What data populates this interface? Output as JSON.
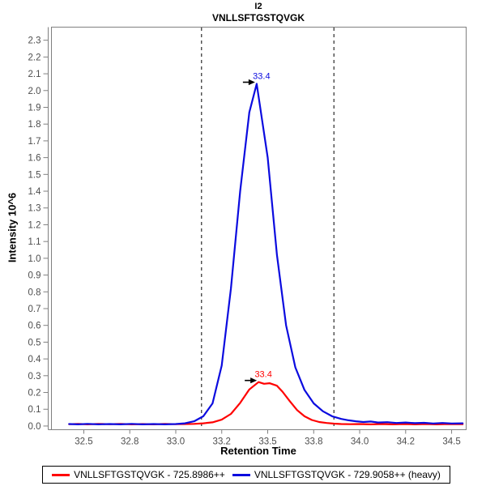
{
  "window": {
    "background": "#ffffff"
  },
  "chart_data": {
    "type": "line",
    "title": "I2",
    "subtitle": "VNLLSFTGSTQVGK",
    "xlabel": "Retention Time",
    "ylabel": "Intensity 10^6",
    "xlim": [
      32.324,
      34.579
    ],
    "ylim": [
      -0.022,
      2.378
    ],
    "grid": false,
    "frame_color": "#808080",
    "tick_label_color": "#4d4d4d",
    "boundary_color": "#2b2b2b",
    "annotation_arrow_color": "#000000",
    "integration_boundaries": [
      33.14,
      33.86
    ],
    "xticks": {
      "values": [
        32.5,
        32.75,
        33.0,
        33.25,
        33.5,
        33.75,
        34.0,
        34.25,
        34.5
      ],
      "labels": [
        "32.5",
        "32.8",
        "33.0",
        "33.2",
        "33.5",
        "33.8",
        "34.0",
        "34.2",
        "34.5"
      ]
    },
    "yticks": {
      "values": [
        0.0,
        0.1,
        0.2,
        0.3,
        0.4,
        0.5,
        0.6,
        0.7,
        0.8,
        0.9,
        1.0,
        1.1,
        1.2,
        1.3,
        1.4,
        1.5,
        1.6,
        1.7,
        1.8,
        1.9,
        2.0,
        2.1,
        2.2,
        2.3
      ],
      "labels": [
        "0.0",
        "0.1",
        "0.2",
        "0.3",
        "0.4",
        "0.5",
        "0.6",
        "0.7",
        "0.8",
        "0.9",
        "1.0",
        "1.1",
        "1.2",
        "1.3",
        "1.4",
        "1.5",
        "1.6",
        "1.7",
        "1.8",
        "1.9",
        "2.0",
        "2.1",
        "2.2",
        "2.3"
      ]
    },
    "series": [
      {
        "name": "VNLLSFTGSTQVGK - 725.8986++",
        "color": "#ff0000",
        "peak_annotation": {
          "label": "33.4",
          "rt": 33.45,
          "intensity": 0.262
        },
        "points": [
          [
            32.42,
            0.011
          ],
          [
            32.47,
            0.013
          ],
          [
            32.52,
            0.01
          ],
          [
            32.58,
            0.013
          ],
          [
            32.64,
            0.011
          ],
          [
            32.7,
            0.013
          ],
          [
            32.76,
            0.01
          ],
          [
            32.82,
            0.012
          ],
          [
            32.88,
            0.01
          ],
          [
            32.94,
            0.013
          ],
          [
            33.0,
            0.011
          ],
          [
            33.05,
            0.012
          ],
          [
            33.1,
            0.013
          ],
          [
            33.15,
            0.016
          ],
          [
            33.2,
            0.022
          ],
          [
            33.25,
            0.038
          ],
          [
            33.3,
            0.072
          ],
          [
            33.35,
            0.138
          ],
          [
            33.4,
            0.218
          ],
          [
            33.45,
            0.262
          ],
          [
            33.48,
            0.252
          ],
          [
            33.51,
            0.255
          ],
          [
            33.55,
            0.24
          ],
          [
            33.58,
            0.205
          ],
          [
            33.62,
            0.148
          ],
          [
            33.66,
            0.095
          ],
          [
            33.7,
            0.058
          ],
          [
            33.74,
            0.036
          ],
          [
            33.78,
            0.024
          ],
          [
            33.82,
            0.018
          ],
          [
            33.86,
            0.014
          ],
          [
            33.9,
            0.012
          ],
          [
            33.95,
            0.011
          ],
          [
            34.0,
            0.012
          ],
          [
            34.06,
            0.01
          ],
          [
            34.12,
            0.012
          ],
          [
            34.18,
            0.01
          ],
          [
            34.24,
            0.012
          ],
          [
            34.3,
            0.01
          ],
          [
            34.36,
            0.012
          ],
          [
            34.42,
            0.01
          ],
          [
            34.48,
            0.012
          ],
          [
            34.56,
            0.011
          ]
        ]
      },
      {
        "name": "VNLLSFTGSTQVGK - 729.9058++ (heavy)",
        "color": "#0b0bdf",
        "peak_annotation": {
          "label": "33.4",
          "rt": 33.44,
          "intensity": 2.04
        },
        "points": [
          [
            32.42,
            0.012
          ],
          [
            32.47,
            0.01
          ],
          [
            32.52,
            0.013
          ],
          [
            32.58,
            0.01
          ],
          [
            32.64,
            0.012
          ],
          [
            32.7,
            0.01
          ],
          [
            32.76,
            0.013
          ],
          [
            32.82,
            0.01
          ],
          [
            32.88,
            0.012
          ],
          [
            32.94,
            0.01
          ],
          [
            33.0,
            0.012
          ],
          [
            33.05,
            0.016
          ],
          [
            33.1,
            0.028
          ],
          [
            33.15,
            0.058
          ],
          [
            33.2,
            0.135
          ],
          [
            33.25,
            0.36
          ],
          [
            33.3,
            0.82
          ],
          [
            33.35,
            1.4
          ],
          [
            33.4,
            1.87
          ],
          [
            33.44,
            2.04
          ],
          [
            33.47,
            1.82
          ],
          [
            33.5,
            1.6
          ],
          [
            33.55,
            1.02
          ],
          [
            33.6,
            0.6
          ],
          [
            33.65,
            0.35
          ],
          [
            33.7,
            0.215
          ],
          [
            33.75,
            0.135
          ],
          [
            33.8,
            0.088
          ],
          [
            33.85,
            0.058
          ],
          [
            33.9,
            0.042
          ],
          [
            33.94,
            0.034
          ],
          [
            33.98,
            0.028
          ],
          [
            34.02,
            0.024
          ],
          [
            34.06,
            0.027
          ],
          [
            34.1,
            0.021
          ],
          [
            34.15,
            0.023
          ],
          [
            34.2,
            0.018
          ],
          [
            34.25,
            0.021
          ],
          [
            34.3,
            0.017
          ],
          [
            34.35,
            0.019
          ],
          [
            34.4,
            0.015
          ],
          [
            34.45,
            0.018
          ],
          [
            34.5,
            0.015
          ],
          [
            34.56,
            0.016
          ]
        ]
      }
    ],
    "legend_position": "bottom"
  },
  "legend": {
    "items": [
      {
        "label": "VNLLSFTGSTQVGK - 725.8986++",
        "color": "#ff0000"
      },
      {
        "label": "VNLLSFTGSTQVGK - 729.9058++ (heavy)",
        "color": "#0b0bdf"
      }
    ]
  }
}
